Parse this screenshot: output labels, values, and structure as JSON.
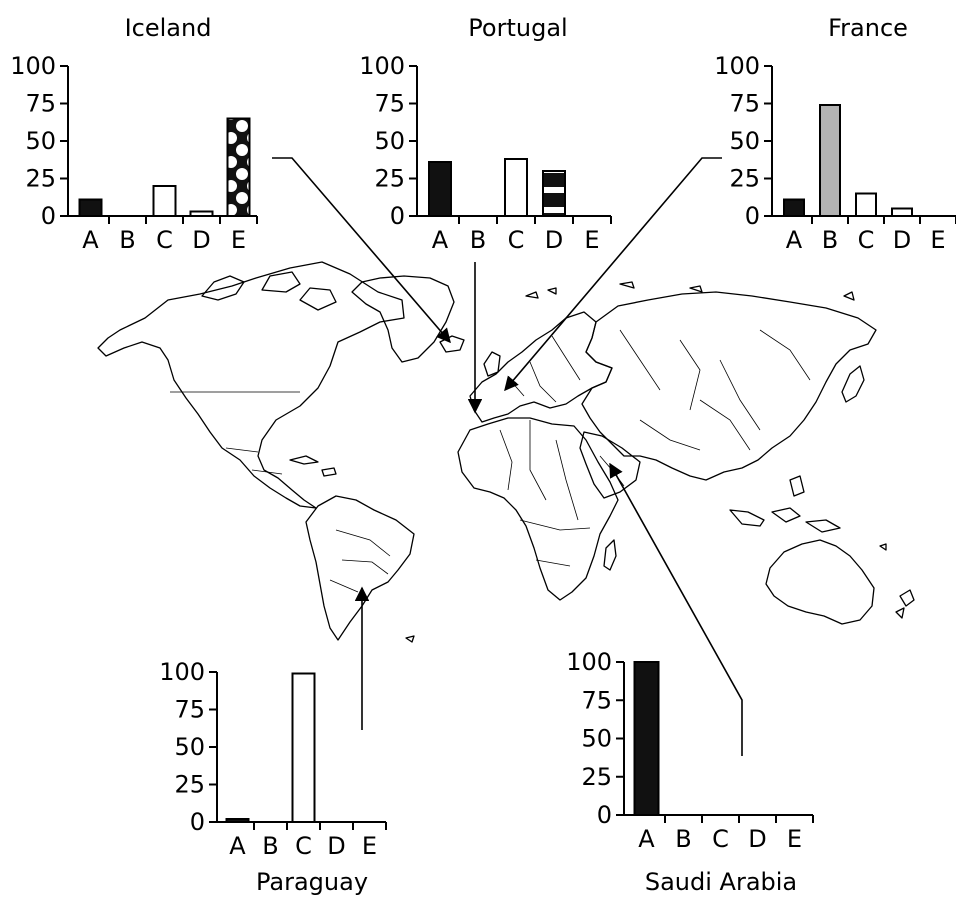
{
  "chart_data": [
    {
      "type": "bar",
      "title": "Iceland",
      "categories": [
        "A",
        "B",
        "C",
        "D",
        "E"
      ],
      "values": [
        11,
        0,
        20,
        3,
        65
      ],
      "yticks": [
        0,
        25,
        50,
        75,
        100
      ],
      "ylim": [
        0,
        100
      ],
      "bar_styles": [
        "solid",
        "none",
        "open",
        "open",
        "dotted"
      ]
    },
    {
      "type": "bar",
      "title": "Portugal",
      "categories": [
        "A",
        "B",
        "C",
        "D",
        "E"
      ],
      "values": [
        36,
        0,
        38,
        30,
        0
      ],
      "yticks": [
        0,
        25,
        50,
        75,
        100
      ],
      "ylim": [
        0,
        100
      ],
      "bar_styles": [
        "solid",
        "none",
        "open",
        "striped",
        "none"
      ]
    },
    {
      "type": "bar",
      "title": "France",
      "categories": [
        "A",
        "B",
        "C",
        "D",
        "E"
      ],
      "values": [
        11,
        74,
        15,
        5,
        0
      ],
      "yticks": [
        0,
        25,
        50,
        75,
        100
      ],
      "ylim": [
        0,
        100
      ],
      "bar_styles": [
        "solid",
        "grey",
        "open",
        "open",
        "none"
      ]
    },
    {
      "type": "bar",
      "title": "Paraguay",
      "categories": [
        "A",
        "B",
        "C",
        "D",
        "E"
      ],
      "values": [
        2,
        0,
        99,
        0,
        0
      ],
      "yticks": [
        0,
        25,
        50,
        75,
        100
      ],
      "ylim": [
        0,
        100
      ],
      "bar_styles": [
        "solid",
        "none",
        "open",
        "none",
        "none"
      ]
    },
    {
      "type": "bar",
      "title": "Saudi Arabia",
      "categories": [
        "A",
        "B",
        "C",
        "D",
        "E"
      ],
      "values": [
        100,
        0,
        0,
        0,
        0
      ],
      "yticks": [
        0,
        25,
        50,
        75,
        100
      ],
      "ylim": [
        0,
        100
      ],
      "bar_styles": [
        "solid",
        "none",
        "none",
        "none",
        "none"
      ]
    }
  ],
  "colors": {
    "solid": "#111111",
    "grey": "#b3b3b3",
    "open": "#ffffff",
    "ink": "#000000"
  }
}
